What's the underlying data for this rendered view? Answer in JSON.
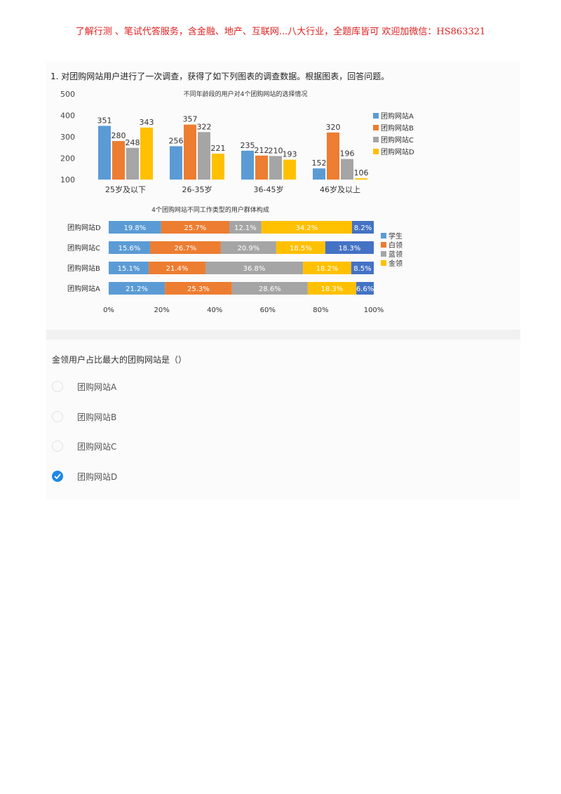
{
  "header": {
    "text": "了解行测 、笔试代答服务，含金融、地产、互联网...八大行业，全题库皆可 欢迎加微信：HS863321"
  },
  "question_intro": "1.  对团购网站用户进行了一次调查，获得了如下列图表的调查数据。根据图表，回答问题。",
  "chart_data": [
    {
      "type": "bar",
      "title": "不同年龄段的用户对4个团购网站的选择情况",
      "categories": [
        "25岁及以下",
        "26-35岁",
        "36-45岁",
        "46岁及以上"
      ],
      "series": [
        {
          "name": "团购网站A",
          "color": "#5b9bd5",
          "values": [
            351,
            256,
            235,
            152
          ]
        },
        {
          "name": "团购网站B",
          "color": "#ed7d31",
          "values": [
            280,
            357,
            212,
            320
          ]
        },
        {
          "name": "团购网站C",
          "color": "#a5a5a5",
          "values": [
            248,
            322,
            210,
            196
          ]
        },
        {
          "name": "团购网站D",
          "color": "#ffc000",
          "values": [
            343,
            221,
            193,
            106
          ]
        }
      ],
      "yticks": [
        "100",
        "200",
        "300",
        "400",
        "500"
      ],
      "ylim": [
        100,
        500
      ],
      "legend": "right"
    },
    {
      "type": "bar",
      "orientation": "horizontal-stacked",
      "title": "4个团购网站不同工作类型的用户群体构成",
      "categories": [
        "团购网站D",
        "团购网站C",
        "团购网站B",
        "团购网站A"
      ],
      "series": [
        {
          "name": "学生",
          "color": "#5b9bd5",
          "values": [
            19.8,
            15.6,
            15.1,
            21.2
          ],
          "labels": [
            "19.8%",
            "15.6%",
            "15.1%",
            "21.2%"
          ]
        },
        {
          "name": "白领",
          "color": "#ed7d31",
          "values": [
            25.7,
            26.7,
            21.4,
            25.3
          ],
          "labels": [
            "25.7%",
            "26.7%",
            "21.4%",
            "25.3%"
          ]
        },
        {
          "name": "蓝领",
          "color": "#a5a5a5",
          "values": [
            12.1,
            20.9,
            36.8,
            28.6
          ],
          "labels": [
            "12.1%",
            "20.9%",
            "36.8%",
            "28.6%"
          ]
        },
        {
          "name": "金领",
          "color": "#ffc000",
          "values": [
            34.2,
            18.5,
            18.2,
            18.3
          ],
          "labels": [
            "34.2%",
            "18.5%",
            "18.2%",
            "18.3%"
          ]
        },
        {
          "name": "",
          "color": "#4472c4",
          "values": [
            8.2,
            18.3,
            8.5,
            6.6
          ],
          "labels": [
            "8.2%",
            "18.3%",
            "8.5%",
            "6.6%"
          ]
        }
      ],
      "xticks": [
        "0%",
        "20%",
        "40%",
        "60%",
        "80%",
        "100%"
      ],
      "xlim": [
        0,
        100
      ],
      "legend": "right"
    }
  ],
  "question": "金领用户占比最大的团购网站是（）",
  "options": [
    {
      "label": "团购网站A",
      "selected": false
    },
    {
      "label": "团购网站B",
      "selected": false
    },
    {
      "label": "团购网站C",
      "selected": false
    },
    {
      "label": "团购网站D",
      "selected": true
    }
  ],
  "icons": {
    "selected": "check-icon"
  }
}
